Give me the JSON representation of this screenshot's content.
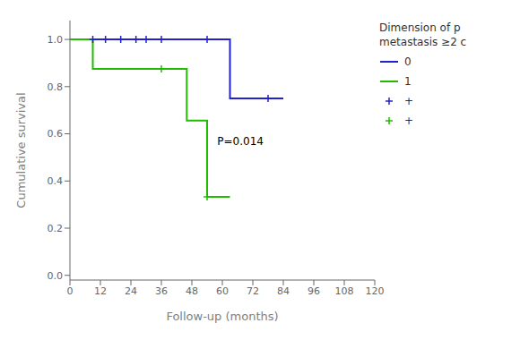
{
  "chart_data": {
    "type": "line",
    "xlabel": "Follow-up (months)",
    "ylabel": "Cumulative survival",
    "xlim": [
      0,
      120
    ],
    "ylim": [
      -0.02,
      1.08
    ],
    "xticks": [
      0,
      12,
      24,
      36,
      48,
      60,
      72,
      84,
      96,
      108,
      120
    ],
    "yticks": [
      {
        "value": 0,
        "label": "0.0"
      },
      0.2,
      0.4,
      0.6,
      0.8,
      {
        "value": 1,
        "label": "1.0"
      }
    ],
    "grid": false,
    "legend": "right",
    "legend_title": [
      "Dimension of p",
      "metastasis ≥2 c"
    ],
    "annotations": [
      {
        "text": "P=0.014",
        "x": 58,
        "y": 0.57
      }
    ],
    "series": [
      {
        "name": "0",
        "type": "line",
        "line_style": "step",
        "color": "#2222cc",
        "x": [
          0,
          63,
          63,
          84
        ],
        "values": [
          1.0,
          1.0,
          0.75,
          0.75
        ]
      },
      {
        "name": "1",
        "type": "line",
        "line_style": "step",
        "color": "#22bb00",
        "x": [
          0,
          9,
          9,
          46,
          46,
          54,
          54,
          63
        ],
        "values": [
          1.0,
          1.0,
          0.875,
          0.875,
          0.656,
          0.656,
          0.333,
          0.333
        ]
      },
      {
        "name": "+",
        "type": "scatter",
        "marker": "plus",
        "color": "#2222cc",
        "x": [
          9,
          14,
          20,
          26,
          30,
          36,
          54,
          78
        ],
        "values": [
          1.0,
          1.0,
          1.0,
          1.0,
          1.0,
          1.0,
          1.0,
          0.75
        ]
      },
      {
        "name": "+",
        "type": "scatter",
        "marker": "plus",
        "color": "#22bb00",
        "x": [
          36,
          54
        ],
        "values": [
          0.875,
          0.333
        ]
      }
    ]
  }
}
